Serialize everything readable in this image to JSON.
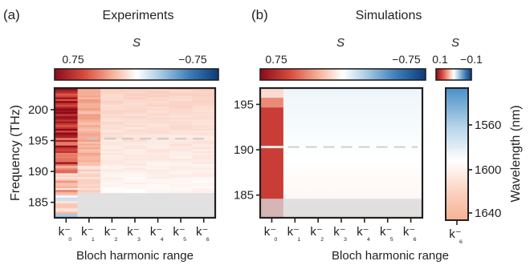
{
  "figure": {
    "panel_a": {
      "label": "(a)",
      "title": "Experiments",
      "cbar_symbol": "S",
      "cbar_min": "0.75",
      "cbar_max": "−0.75"
    },
    "panel_b": {
      "label": "(b)",
      "title": "Simulations",
      "cbar_symbol": "S",
      "cbar_min": "0.75",
      "cbar_max": "−0.75",
      "cbar2_symbol": "S",
      "cbar2_min": "0.1",
      "cbar2_max": "−0.1"
    }
  },
  "chart_data": [
    {
      "type": "heatmap",
      "panel": "(a)",
      "title": "Experiments",
      "xlabel": "Bloch harmonic range",
      "ylabel": "Frequency (THz)",
      "xticks": [
        "k₀⁻",
        "k₁⁻",
        "k₂⁻",
        "k₃⁻",
        "k₄⁻",
        "k₅⁻",
        "k₆⁻"
      ],
      "yticks": [
        200,
        195,
        190,
        185
      ],
      "ylim": [
        182.5,
        203.5
      ],
      "color_label": "S",
      "color_range": [
        0.75,
        -0.75
      ],
      "colormap": [
        "#8b0a1a",
        "#d94a3d",
        "#f7b59d",
        "#ffffff",
        "#a9cde6",
        "#3f7fb8",
        "#0b3b7a"
      ],
      "reference_line_THz": 195.3,
      "masked_below_THz": 186.5,
      "column_peak_S": [
        0.7,
        0.25,
        0.15,
        0.12,
        0.12,
        0.12,
        0.12
      ]
    },
    {
      "type": "heatmap",
      "panel": "(b)",
      "title": "Simulations",
      "xlabel": "Bloch harmonic range",
      "ylabel": "Wavelength (nm)",
      "xticks": [
        "k₀⁻",
        "k₁⁻",
        "k₂⁻",
        "k₃⁻",
        "k₄⁻",
        "k₅⁻",
        "k₆⁻"
      ],
      "yticks": [
        195,
        190,
        185
      ],
      "ylim": [
        182.5,
        196.8
      ],
      "color_label": "S",
      "color_range": [
        0.75,
        -0.75
      ],
      "reference_line_THz": 190.3,
      "masked_below_THz": 184.6,
      "column_peak_S": [
        0.55,
        -0.02,
        -0.02,
        -0.02,
        -0.02,
        -0.02,
        -0.02
      ],
      "inset": {
        "xticks": [
          "k₆⁻"
        ],
        "yticks_nm": [
          1560,
          1600,
          1640
        ],
        "color_range": [
          0.1,
          -0.1
        ],
        "ylabel": "Wavelength (nm)",
        "values_top_to_bottom": [
          -0.08,
          -0.05,
          -0.01,
          0.02,
          0.04
        ]
      }
    }
  ]
}
